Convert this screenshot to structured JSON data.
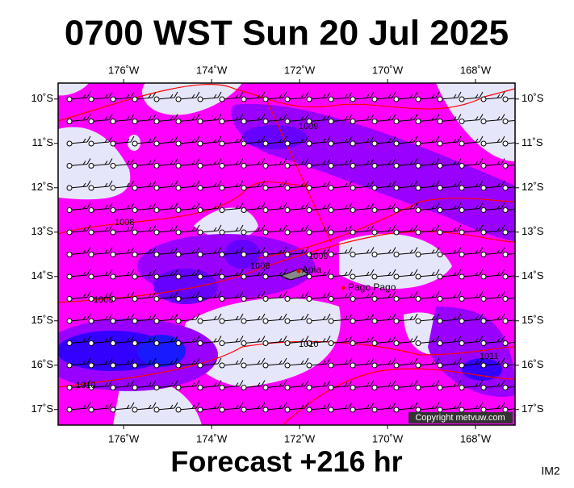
{
  "header": {
    "title": "0700 WST Sun 20 Jul 2025"
  },
  "footer": {
    "forecast": "Forecast +216 hr",
    "code": "IM2"
  },
  "map": {
    "xlim": [
      -177.49,
      -167.1
    ],
    "ylim": [
      -17.35,
      -9.64
    ],
    "lon_ticks": [
      {
        "value": -176,
        "label": "176˚W"
      },
      {
        "value": -174,
        "label": "174˚W"
      },
      {
        "value": -172,
        "label": "172˚W"
      },
      {
        "value": -170,
        "label": "170˚W"
      },
      {
        "value": -168,
        "label": "168˚W"
      }
    ],
    "lat_ticks": [
      {
        "value": -10,
        "label": "10˚S"
      },
      {
        "value": -11,
        "label": "11˚S"
      },
      {
        "value": -12,
        "label": "12˚S"
      },
      {
        "value": -13,
        "label": "13˚S"
      },
      {
        "value": -14,
        "label": "14˚S"
      },
      {
        "value": -15,
        "label": "15˚S"
      },
      {
        "value": -16,
        "label": "16˚S"
      },
      {
        "value": -17,
        "label": "17˚S"
      }
    ],
    "places": [
      "Apia",
      "Pago Pago"
    ],
    "isobar_labels": [
      "1009",
      "1008",
      "1008",
      "1009",
      "1008",
      "1010",
      "1011",
      "1010"
    ],
    "copyright": "Copyright metvuw.com"
  }
}
